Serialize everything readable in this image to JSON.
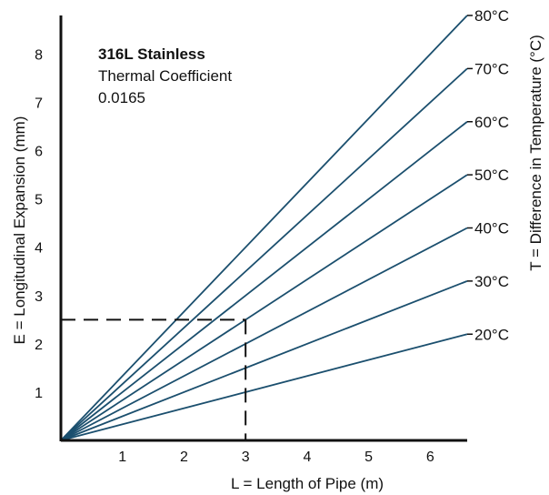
{
  "chart_data": {
    "type": "line",
    "xlabel": "L = Length of Pipe (m)",
    "ylabel": "E = Longitudinal Expansion (mm)",
    "right_label": "T = Difference in Temperature (°C)",
    "xlim": [
      0,
      6.6
    ],
    "ylim": [
      0,
      8.8
    ],
    "xticks": [
      1,
      2,
      3,
      4,
      5,
      6
    ],
    "yticks": [
      1,
      2,
      3,
      4,
      5,
      6,
      7,
      8
    ],
    "series": [
      {
        "name": "80°C",
        "x": [
          0,
          6.6
        ],
        "y": [
          0,
          8.8
        ]
      },
      {
        "name": "70°C",
        "x": [
          0,
          6.6
        ],
        "y": [
          0,
          7.7
        ]
      },
      {
        "name": "60°C",
        "x": [
          0,
          6.6
        ],
        "y": [
          0,
          6.6
        ]
      },
      {
        "name": "50°C",
        "x": [
          0,
          6.6
        ],
        "y": [
          0,
          5.5
        ]
      },
      {
        "name": "40°C",
        "x": [
          0,
          6.6
        ],
        "y": [
          0,
          4.4
        ]
      },
      {
        "name": "30°C",
        "x": [
          0,
          6.6
        ],
        "y": [
          0,
          3.3
        ]
      },
      {
        "name": "20°C",
        "x": [
          0,
          6.6
        ],
        "y": [
          0,
          2.2
        ]
      }
    ],
    "guide": {
      "x": 3,
      "y": 2.5
    },
    "annotation": {
      "title": "316L Stainless",
      "line1": "Thermal Coefficient",
      "line2": "0.0165"
    },
    "line_color": "#1b4f6e",
    "axis_color": "#111111",
    "grid": false
  }
}
